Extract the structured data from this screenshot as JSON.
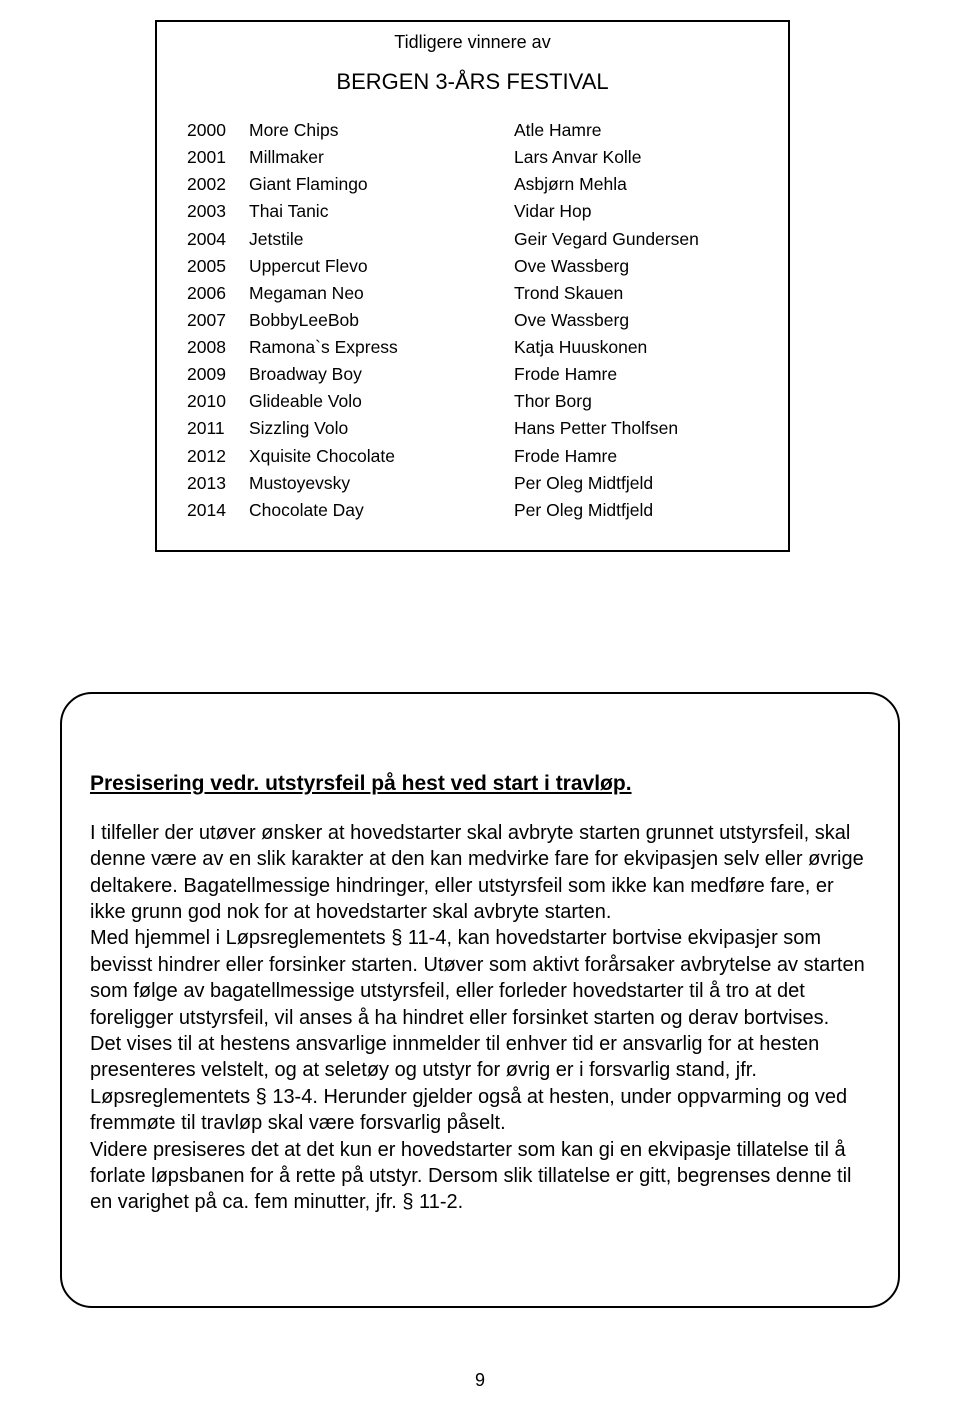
{
  "winners_box": {
    "pretitle": "Tidligere vinnere av",
    "title": "BERGEN 3-ÅRS FESTIVAL",
    "rows": [
      {
        "year": "2000",
        "horse": "More Chips",
        "driver": "Atle Hamre"
      },
      {
        "year": "2001",
        "horse": "Millmaker",
        "driver": "Lars Anvar Kolle"
      },
      {
        "year": "2002",
        "horse": "Giant Flamingo",
        "driver": "Asbjørn Mehla"
      },
      {
        "year": "2003",
        "horse": "Thai Tanic",
        "driver": "Vidar Hop"
      },
      {
        "year": "2004",
        "horse": "Jetstile",
        "driver": "Geir Vegard Gundersen"
      },
      {
        "year": "2005",
        "horse": "Uppercut Flevo",
        "driver": "Ove Wassberg"
      },
      {
        "year": "2006",
        "horse": "Megaman Neo",
        "driver": "Trond Skauen"
      },
      {
        "year": "2007",
        "horse": "BobbyLeeBob",
        "driver": "Ove Wassberg"
      },
      {
        "year": "2008",
        "horse": "Ramona`s Express",
        "driver": "Katja Huuskonen"
      },
      {
        "year": "2009",
        "horse": "Broadway Boy",
        "driver": "Frode Hamre"
      },
      {
        "year": "2010",
        "horse": "Glideable Volo",
        "driver": "Thor Borg"
      },
      {
        "year": "2011",
        "horse": "Sizzling Volo",
        "driver": "Hans Petter Tholfsen"
      },
      {
        "year": "2012",
        "horse": "Xquisite Chocolate",
        "driver": "Frode Hamre"
      },
      {
        "year": "2013",
        "horse": "Mustoyevsky",
        "driver": "Per Oleg Midtfjeld"
      },
      {
        "year": "2014",
        "horse": "Chocolate Day",
        "driver": "Per Oleg Midtfjeld"
      }
    ]
  },
  "notice": {
    "heading": "Presisering vedr. utstyrsfeil på hest ved start i travløp.",
    "body": "I tilfeller der utøver ønsker at hovedstarter skal avbryte starten grunnet utstyrsfeil, skal denne være av en slik karakter at den kan medvirke fare for ekvipasjen selv eller øvrige deltakere. Bagatellmessige hindringer, eller utstyrsfeil som ikke kan medføre fare, er ikke grunn god nok for at hovedstarter skal avbryte starten.\nMed hjemmel i Løpsreglementets § 11-4, kan hovedstarter bortvise ekvipasjer som bevisst hindrer eller forsinker starten. Utøver som aktivt forårsaker avbrytelse av starten som følge av bagatellmessige utstyrsfeil, eller forleder hovedstarter til å tro at det foreligger utstyrsfeil, vil anses å ha hindret eller forsinket starten og derav bortvises.\nDet vises til at hestens ansvarlige innmelder til enhver tid er ansvarlig for at hesten presenteres velstelt, og at seletøy og utstyr for øvrig er i forsvarlig stand, jfr. Løpsreglementets § 13-4. Herunder gjelder også at hesten, under oppvarming og ved fremmøte til travløp skal være forsvarlig påselt.\nVidere presiseres det at det kun er hovedstarter som kan gi en ekvipasje tillatelse til å forlate løpsbanen for å rette på utstyr. Dersom slik tillatelse er gitt, begrenses denne til en varighet på ca. fem minutter, jfr. § 11-2."
  },
  "page_number": "9",
  "colors": {
    "text": "#000000",
    "background": "#ffffff",
    "border": "#000000"
  }
}
